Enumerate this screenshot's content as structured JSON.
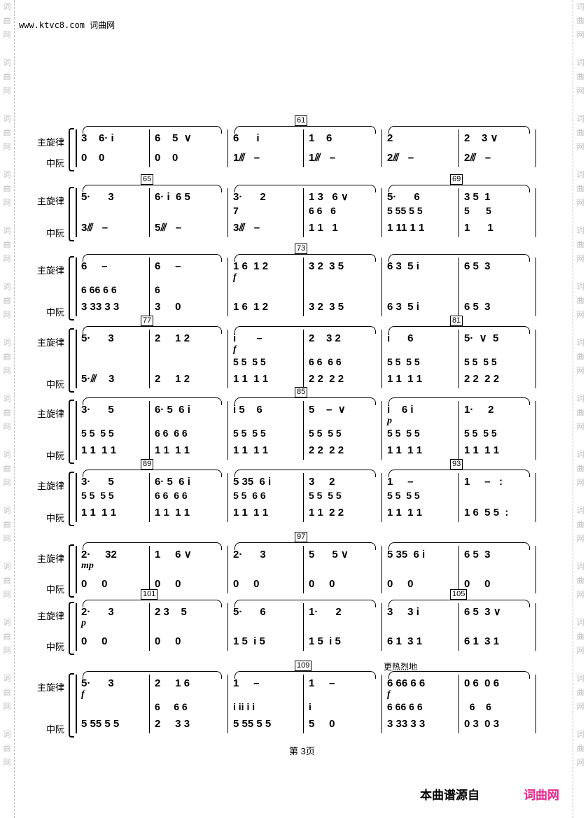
{
  "watermark": "词曲网",
  "site_header": "www.ktvc8.com 词曲网",
  "part_labels": {
    "melody": "主旋律",
    "ruan": "中阮"
  },
  "systems": [
    {
      "marks": [
        {
          "label": "61",
          "at_measure": 3
        }
      ],
      "melody": [
        "3    6· i",
        "6    5  ∨",
        "6      i",
        "1    6",
        "2",
        "2    3 ∨"
      ],
      "chord": [
        "",
        "",
        "",
        "",
        "",
        ""
      ],
      "ruan": [
        "0    0",
        "0    0",
        "1⫻   –",
        "1⫻   –",
        "2⫻   –",
        "2⫻   –"
      ],
      "dynamics": []
    },
    {
      "marks": [
        {
          "label": "65",
          "at_measure": 1
        },
        {
          "label": "69",
          "at_measure": 5
        }
      ],
      "melody": [
        "5·      3",
        "6· i  6 5",
        "3·      2",
        "1 3   6 ∨",
        "5·      6",
        "3 5  1"
      ],
      "chord": [
        "",
        "",
        "7",
        "6 6   6",
        "5 55 5 5",
        "5      5"
      ],
      "ruan": [
        "3⫻   –",
        "5⫻   –",
        "3⫻   –",
        "1 1   1",
        "1 11 1 1",
        "1      1"
      ],
      "dynamics": []
    },
    {
      "marks": [
        {
          "label": "73",
          "at_measure": 3
        }
      ],
      "melody": [
        "6     –",
        "6     –",
        "1 6  1 2",
        "3 2  3 5",
        "6 3  5 i",
        "6 5  3"
      ],
      "chord": [
        "6 66 6 6",
        "6",
        "",
        "",
        "",
        ""
      ],
      "ruan": [
        "3 33 3 3",
        "3     0",
        "1 6  1 2",
        "3 2  3 5",
        "6 3  5 i",
        "6 5  3"
      ],
      "dynamics": [
        {
          "text": "f",
          "measure": 2
        }
      ]
    },
    {
      "marks": [
        {
          "label": "77",
          "at_measure": 1
        },
        {
          "label": "81",
          "at_measure": 5
        }
      ],
      "melody": [
        "5·      3",
        "2     1 2",
        "i       –",
        "2    3 2",
        "i      6",
        "5·  ∨  5"
      ],
      "chord": [
        "",
        "",
        "5 5  5 5",
        "6 6  6 6",
        "5 5  5 5",
        "5 5  5 5"
      ],
      "ruan": [
        "5·⫻    3",
        "2     1 2",
        "1 1  1 1",
        "2 2  2 2",
        "1 1  1 1",
        "2 2  2 2"
      ],
      "dynamics": [
        {
          "text": "f",
          "measure": 2
        }
      ]
    },
    {
      "marks": [
        {
          "label": "85",
          "at_measure": 3
        }
      ],
      "melody": [
        "3·      5",
        "6· 5  6 i",
        "i 5    6",
        "5    –  ∨",
        "i    6 i",
        "1·     2"
      ],
      "chord": [
        "5 5  5 5",
        "6 6  6 6",
        "5 5  5 5",
        "5 5  5 5",
        "5 5  5 5",
        "5 5  5 5"
      ],
      "ruan": [
        "1 1  1 1",
        "1 1  1 1",
        "1 1  1 1",
        "2 2  2 2",
        "1 1  1 1",
        "1 1  1 1"
      ],
      "dynamics": [
        {
          "text": "p",
          "measure": 4
        }
      ]
    },
    {
      "marks": [
        {
          "label": "89",
          "at_measure": 1
        },
        {
          "label": "93",
          "at_measure": 5
        }
      ],
      "melody": [
        "3·      5",
        "6· 5  6 i",
        "5 35  6 i",
        "3     2",
        "1     –",
        "1     –   :"
      ],
      "chord": [
        "5 5  5 5",
        "6 6  6 6",
        "5 5  6 6",
        "5 5  5 5",
        "5 5  5 5",
        ""
      ],
      "ruan": [
        "1 1  1 1",
        "1 1  1 1",
        "1 1  1 1",
        "1 1  2 2",
        "1 1  1 1",
        "1 6  5 5  :"
      ],
      "dynamics": []
    },
    {
      "marks": [
        {
          "label": "97",
          "at_measure": 3
        }
      ],
      "melody": [
        "2·     32",
        "1     6 ∨",
        "2·      3",
        "5      5 ∨",
        "5 35  6 i",
        "6 5  3"
      ],
      "chord": [
        "",
        "",
        "",
        "",
        "",
        ""
      ],
      "ruan": [
        "0     0",
        "0     0",
        "0     0",
        "0     0",
        "0     0",
        "0     0"
      ],
      "dynamics": [
        {
          "text": "mp",
          "measure": 0
        }
      ]
    },
    {
      "marks": [
        {
          "label": "101",
          "at_measure": 1
        },
        {
          "label": "105",
          "at_measure": 5
        }
      ],
      "melody": [
        "2·      3",
        "2 3    5",
        "5·      6",
        "1·      2",
        "3     3 i",
        "6 5  3 ∨"
      ],
      "chord": [
        "",
        "",
        "",
        "",
        "",
        ""
      ],
      "ruan": [
        "0     0",
        "0     0",
        "1 5  i 5",
        "1 5  i 5",
        "6 1  3 1",
        "6 1  3 1"
      ],
      "dynamics": [
        {
          "text": "p",
          "measure": 0
        }
      ]
    },
    {
      "marks": [
        {
          "label": "109",
          "at_measure": 3
        }
      ],
      "expression": "更热烈地",
      "melody": [
        "5·      3",
        "2     1 6",
        "1     –",
        "1     –",
        "6 66 6 6",
        "0 6  0 6"
      ],
      "chord": [
        "",
        "6     6 6",
        "i ii i i",
        "i",
        "6 66 6 6",
        "  6    6"
      ],
      "ruan": [
        "5 55 5 5",
        "2     3 3",
        "5 55 5 5",
        "5     0",
        "3 33 3 3",
        "0 3  0 3"
      ],
      "dynamics": [
        {
          "text": "f",
          "measure": 0
        },
        {
          "text": "f",
          "measure": 4
        }
      ]
    }
  ],
  "footer": {
    "page_number": "第 3页",
    "source_label": "本曲谱源自",
    "source_site": "词曲网",
    "source_color": "#e0288a"
  }
}
